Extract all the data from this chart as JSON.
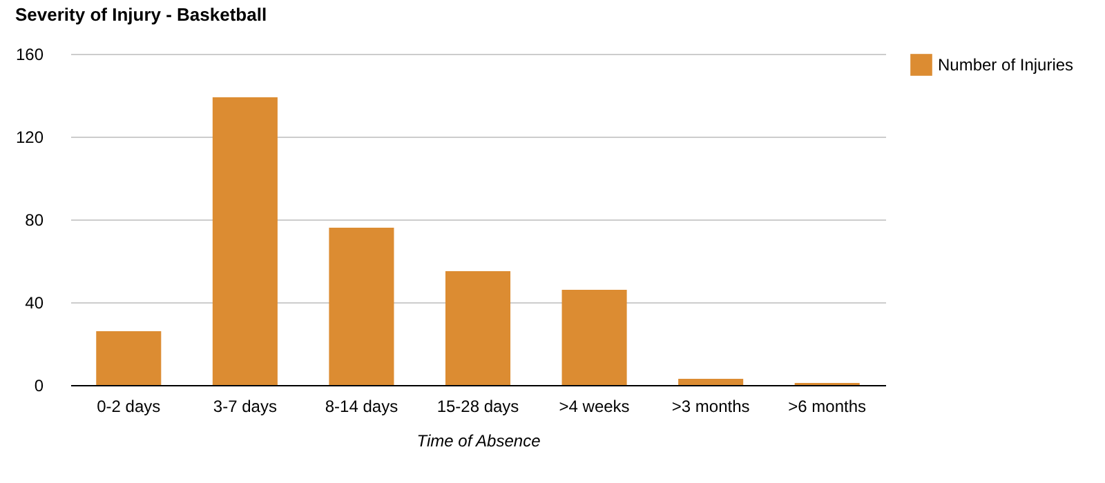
{
  "chart_data": {
    "type": "bar",
    "title": "Severity of Injury - Basketball",
    "xlabel": "Time of Absence",
    "categories": [
      "0-2 days",
      "3-7 days",
      "8-14 days",
      "15-28 days",
      ">4 weeks",
      ">3 months",
      ">6 months"
    ],
    "series": [
      {
        "name": "Number of Injuries",
        "color": "#dc8c32",
        "values": [
          26,
          139,
          76,
          55,
          46,
          3,
          1
        ]
      }
    ],
    "ylim": [
      0,
      160
    ],
    "yticks": [
      0,
      40,
      80,
      120,
      160
    ],
    "grid": "y",
    "legend": "top right"
  }
}
